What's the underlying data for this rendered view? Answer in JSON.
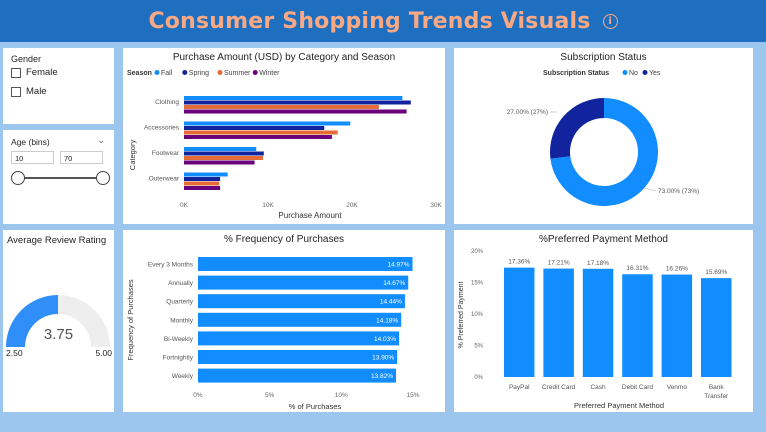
{
  "header": {
    "title": "Consumer Shopping Trends Visuals",
    "info_icon": "info-icon"
  },
  "gender_slicer": {
    "title": "Gender",
    "options": [
      "Female",
      "Male"
    ]
  },
  "age_slicer": {
    "title": "Age (bins)",
    "min_value": "10",
    "max_value": "70",
    "range_fraction": [
      0.0,
      1.0
    ]
  },
  "review": {
    "title": "Average Review Rating",
    "value": "3.75",
    "min_label": "2.50",
    "max_label": "5.00",
    "value_num": 3.75,
    "min_num": 2.5,
    "max_num": 5.0,
    "fill_color": "#2f8ef7",
    "track_color": "#eeeeee"
  },
  "colors": {
    "fall": "#118dff",
    "spring": "#12239e",
    "summer": "#e66c37",
    "winter": "#6b007b",
    "bar": "#118dff",
    "yes": "#12239e",
    "no": "#118dff"
  },
  "chart_data": [
    {
      "id": "purchase-by-category-season",
      "type": "bar",
      "orientation": "horizontal",
      "title": "Purchase Amount (USD) by Category and Season",
      "legend_title": "Season",
      "legend_position": "top-left",
      "xlabel": "Purchase Amount",
      "ylabel": "Category",
      "categories": [
        "Clothing",
        "Accessories",
        "Footwear",
        "Outerwear"
      ],
      "x_ticks": [
        "0K",
        "10K",
        "20K",
        "30K"
      ],
      "xlim": [
        0,
        30000
      ],
      "series": [
        {
          "name": "Fall",
          "values": [
            26000,
            19800,
            8600,
            5200
          ]
        },
        {
          "name": "Spring",
          "values": [
            27000,
            16700,
            9500,
            4300
          ]
        },
        {
          "name": "Summer",
          "values": [
            23200,
            18300,
            9400,
            4200
          ]
        },
        {
          "name": "Winter",
          "values": [
            26500,
            17600,
            8400,
            4300
          ]
        }
      ]
    },
    {
      "id": "subscription-status",
      "type": "pie",
      "donut": true,
      "title": "Subscription Status",
      "legend_title": "Subscription Status",
      "legend_position": "top",
      "labels": [
        "No",
        "Yes"
      ],
      "values": [
        73.0,
        27.0
      ],
      "data_labels": [
        "73.00% (73%)",
        "27.00% (27%)"
      ]
    },
    {
      "id": "frequency-of-purchases",
      "type": "bar",
      "orientation": "horizontal",
      "title": "% Frequency of Purchases",
      "xlabel": "% of Purchases",
      "ylabel": "Frequency of Purchases",
      "categories": [
        "Every 3 Months",
        "Annually",
        "Quarterly",
        "Monthly",
        "Bi-Weekly",
        "Fortnightly",
        "Weekly"
      ],
      "values": [
        14.97,
        14.67,
        14.44,
        14.18,
        14.03,
        13.9,
        13.82
      ],
      "data_labels": [
        "14.97%",
        "14.67%",
        "14.44%",
        "14.18%",
        "14.03%",
        "13.90%",
        "13.82%"
      ],
      "x_ticks": [
        "0%",
        "5%",
        "10%",
        "15%"
      ],
      "xlim": [
        0,
        15.7
      ]
    },
    {
      "id": "preferred-payment-method",
      "type": "bar",
      "orientation": "vertical",
      "title": "%Preferred Payment Method",
      "xlabel": "Preferred Payment Method",
      "ylabel": "% Preferred Payment",
      "categories": [
        "PayPal",
        "Credit Card",
        "Cash",
        "Debit Card",
        "Venmo",
        "Bank Transfer"
      ],
      "values": [
        17.36,
        17.21,
        17.18,
        16.31,
        16.26,
        15.69
      ],
      "data_labels": [
        "17.36%",
        "17.21%",
        "17.18%",
        "16.31%",
        "16.26%",
        "15.69%"
      ],
      "y_ticks": [
        "0%",
        "5%",
        "10%",
        "15%",
        "20%"
      ],
      "ylim": [
        0,
        20
      ]
    }
  ]
}
